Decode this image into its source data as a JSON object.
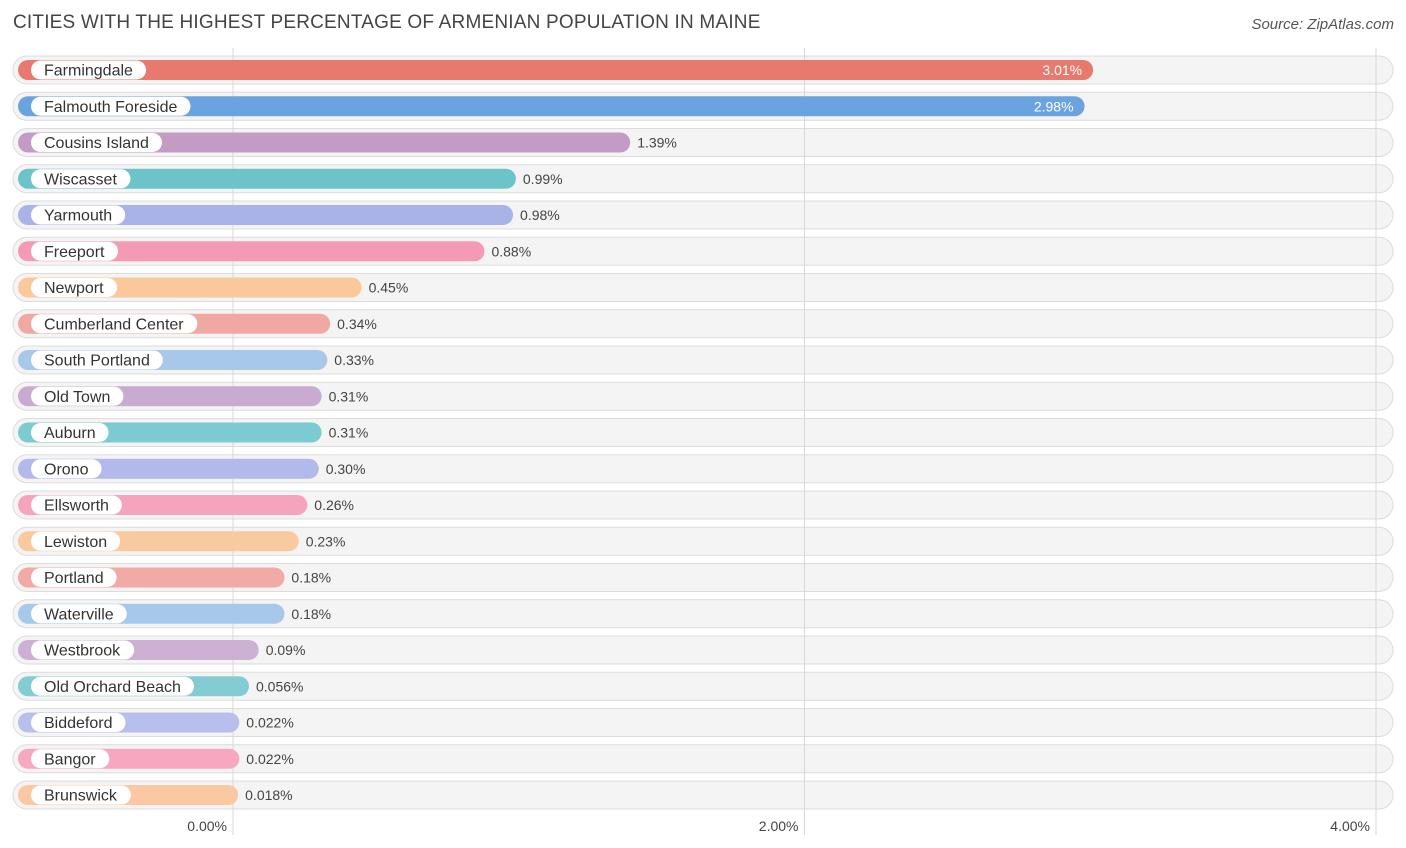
{
  "header": {
    "title": "CITIES WITH THE HIGHEST PERCENTAGE OF ARMENIAN POPULATION IN MAINE",
    "source": "Source: ZipAtlas.com"
  },
  "chart_data": {
    "type": "bar",
    "orientation": "horizontal",
    "categories": [
      "Farmingdale",
      "Falmouth Foreside",
      "Cousins Island",
      "Wiscasset",
      "Yarmouth",
      "Freeport",
      "Newport",
      "Cumberland Center",
      "South Portland",
      "Old Town",
      "Auburn",
      "Orono",
      "Ellsworth",
      "Lewiston",
      "Portland",
      "Waterville",
      "Westbrook",
      "Old Orchard Beach",
      "Biddeford",
      "Bangor",
      "Brunswick"
    ],
    "values": [
      3.01,
      2.98,
      1.39,
      0.99,
      0.98,
      0.88,
      0.45,
      0.34,
      0.33,
      0.31,
      0.31,
      0.3,
      0.26,
      0.23,
      0.18,
      0.18,
      0.09,
      0.056,
      0.022,
      0.022,
      0.018
    ],
    "value_labels": [
      "3.01%",
      "2.98%",
      "1.39%",
      "0.99%",
      "0.98%",
      "0.88%",
      "0.45%",
      "0.34%",
      "0.33%",
      "0.31%",
      "0.31%",
      "0.30%",
      "0.26%",
      "0.23%",
      "0.18%",
      "0.18%",
      "0.09%",
      "0.056%",
      "0.022%",
      "0.022%",
      "0.018%"
    ],
    "colors": [
      "#e8796f",
      "#6aa3df",
      "#c39bc5",
      "#6cc3c9",
      "#a9b3e8",
      "#f59ab5",
      "#f9c89b",
      "#f0a8a3",
      "#a8c8ea",
      "#c9aad1",
      "#7ccbd2",
      "#b3b9eb",
      "#f6a3bd",
      "#f9caa0",
      "#f1aaa6",
      "#a7c8ea",
      "#cdb0d4",
      "#84ccd3",
      "#b9bfec",
      "#f7a8c0",
      "#fac9a3"
    ],
    "x_ticks": [
      "0.00%",
      "2.00%",
      "4.00%"
    ],
    "xlim": [
      0,
      4
    ],
    "grid": true,
    "xlabel": "",
    "ylabel": ""
  }
}
